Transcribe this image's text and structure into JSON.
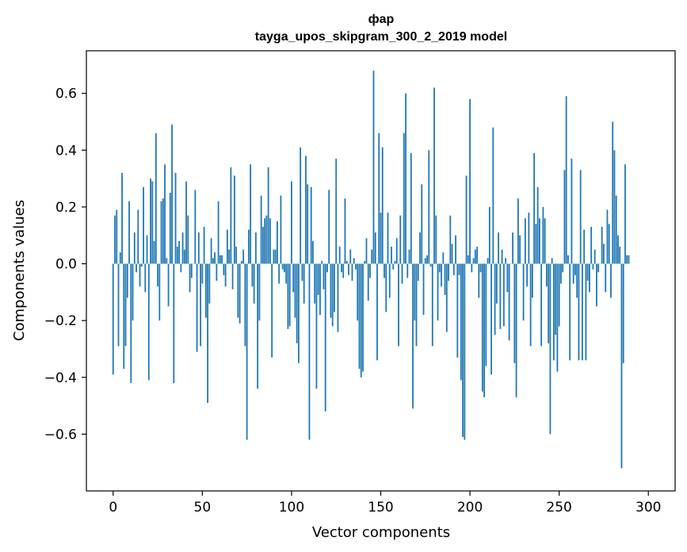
{
  "chart_data": {
    "type": "bar",
    "title": "фар",
    "subtitle": "tayga_upos_skipgram_300_2_2019 model",
    "xlabel": "Vector components",
    "ylabel": "Components values",
    "xlim": [
      -15,
      315
    ],
    "ylim": [
      -0.8,
      0.75
    ],
    "xticks": [
      0,
      50,
      100,
      150,
      200,
      250,
      300
    ],
    "yticks": [
      -0.6,
      -0.4,
      -0.2,
      0.0,
      0.2,
      0.4,
      0.6
    ],
    "ytick_labels": [
      "−0.6",
      "−0.4",
      "−0.2",
      "0.0",
      "0.2",
      "0.4",
      "0.6"
    ],
    "xtick_labels": [
      "0",
      "50",
      "100",
      "150",
      "200",
      "250",
      "300"
    ],
    "bar_color": "#1f77b4",
    "grid": false,
    "values": [
      -0.39,
      0.17,
      0.19,
      -0.29,
      0.04,
      0.32,
      -0.37,
      -0.29,
      -0.12,
      0.22,
      -0.42,
      -0.2,
      0.11,
      -0.03,
      0.19,
      -0.08,
      -0.01,
      0.27,
      -0.1,
      0.1,
      -0.41,
      0.3,
      0.29,
      0.08,
      0.46,
      -0.08,
      -0.2,
      0.22,
      0.23,
      0.35,
      0.02,
      -0.15,
      0.25,
      0.49,
      -0.42,
      0.32,
      0.06,
      0.08,
      -0.03,
      0.11,
      0.05,
      0.29,
      0.17,
      -0.1,
      -0.05,
      0.0,
      0.26,
      -0.31,
      0.11,
      -0.29,
      -0.07,
      0.13,
      -0.19,
      -0.49,
      -0.14,
      0.09,
      0.02,
      0.04,
      -0.06,
      0.22,
      0.03,
      0.03,
      -0.04,
      -0.08,
      0.12,
      0.05,
      0.34,
      -0.09,
      0.31,
      0.06,
      -0.19,
      -0.21,
      0.01,
      0.05,
      -0.29,
      -0.62,
      0.12,
      0.35,
      -0.08,
      -0.14,
      0.11,
      -0.44,
      -0.2,
      0.24,
      0.13,
      0.16,
      0.17,
      0.34,
      0.16,
      -0.33,
      0.05,
      0.05,
      0.15,
      -0.07,
      0.24,
      -0.02,
      -0.03,
      -0.07,
      -0.23,
      -0.22,
      0.29,
      -0.1,
      -0.19,
      -0.28,
      -0.35,
      0.41,
      -0.06,
      -0.14,
      0.38,
      0.28,
      -0.62,
      0.27,
      0.08,
      -0.14,
      -0.44,
      -0.11,
      -0.18,
      0.01,
      -0.09,
      -0.52,
      -0.03,
      0.26,
      -0.19,
      -0.22,
      -0.17,
      0.37,
      -0.24,
      0.06,
      -0.03,
      -0.05,
      0.23,
      0.01,
      -0.04,
      0.05,
      -0.06,
      0.02,
      -0.02,
      -0.2,
      -0.37,
      -0.4,
      -0.38,
      0.01,
      0.09,
      -0.13,
      -0.05,
      0.05,
      0.68,
      0.11,
      -0.34,
      0.46,
      0.18,
      0.41,
      -0.05,
      -0.17,
      0.18,
      -0.12,
      0.06,
      -0.02,
      0.01,
      0.09,
      -0.29,
      0.17,
      -0.07,
      0.46,
      0.6,
      -0.05,
      0.05,
      0.39,
      -0.51,
      -0.2,
      -0.29,
      -0.06,
      0.11,
      0.28,
      -0.18,
      0.02,
      0.03,
      0.4,
      -0.01,
      -0.29,
      0.62,
      0.17,
      -0.2,
      -0.03,
      -0.08,
      0.04,
      -0.11,
      -0.24,
      -0.06,
      0.17,
      0.07,
      -0.04,
      0.1,
      -0.33,
      -0.04,
      -0.41,
      -0.61,
      -0.62,
      0.31,
      0.03,
      0.58,
      -0.03,
      0.02,
      0.05,
      0.06,
      -0.12,
      -0.03,
      -0.45,
      -0.47,
      -0.36,
      0.02,
      0.2,
      -0.39,
      0.48,
      -0.25,
      -0.14,
      0.11,
      -0.23,
      0.05,
      -0.22,
      0.02,
      -0.1,
      -0.27,
      0.0,
      0.11,
      -0.35,
      -0.47,
      0.23,
      0.1,
      0.0,
      -0.2,
      0.16,
      -0.08,
      0.18,
      -0.29,
      -0.12,
      0.39,
      0.14,
      0.27,
      0.16,
      -0.29,
      0.2,
      0.16,
      -0.08,
      -0.28,
      -0.6,
      0.02,
      -0.34,
      -0.25,
      -0.38,
      -0.22,
      -0.07,
      -0.03,
      0.33,
      0.59,
      0.03,
      -0.34,
      0.37,
      -0.07,
      -0.04,
      -0.12,
      -0.34,
      0.33,
      -0.34,
      0.12,
      -0.34,
      -0.06,
      -0.1,
      0.13,
      -0.02,
      0.05,
      -0.15,
      -0.03,
      0.0,
      0.13,
      0.07,
      -0.1,
      0.19,
      0.14,
      -0.12,
      0.5,
      0.4,
      0.24,
      0.1,
      0.06,
      -0.72,
      -0.35,
      0.35,
      0.03,
      0.03
    ]
  }
}
